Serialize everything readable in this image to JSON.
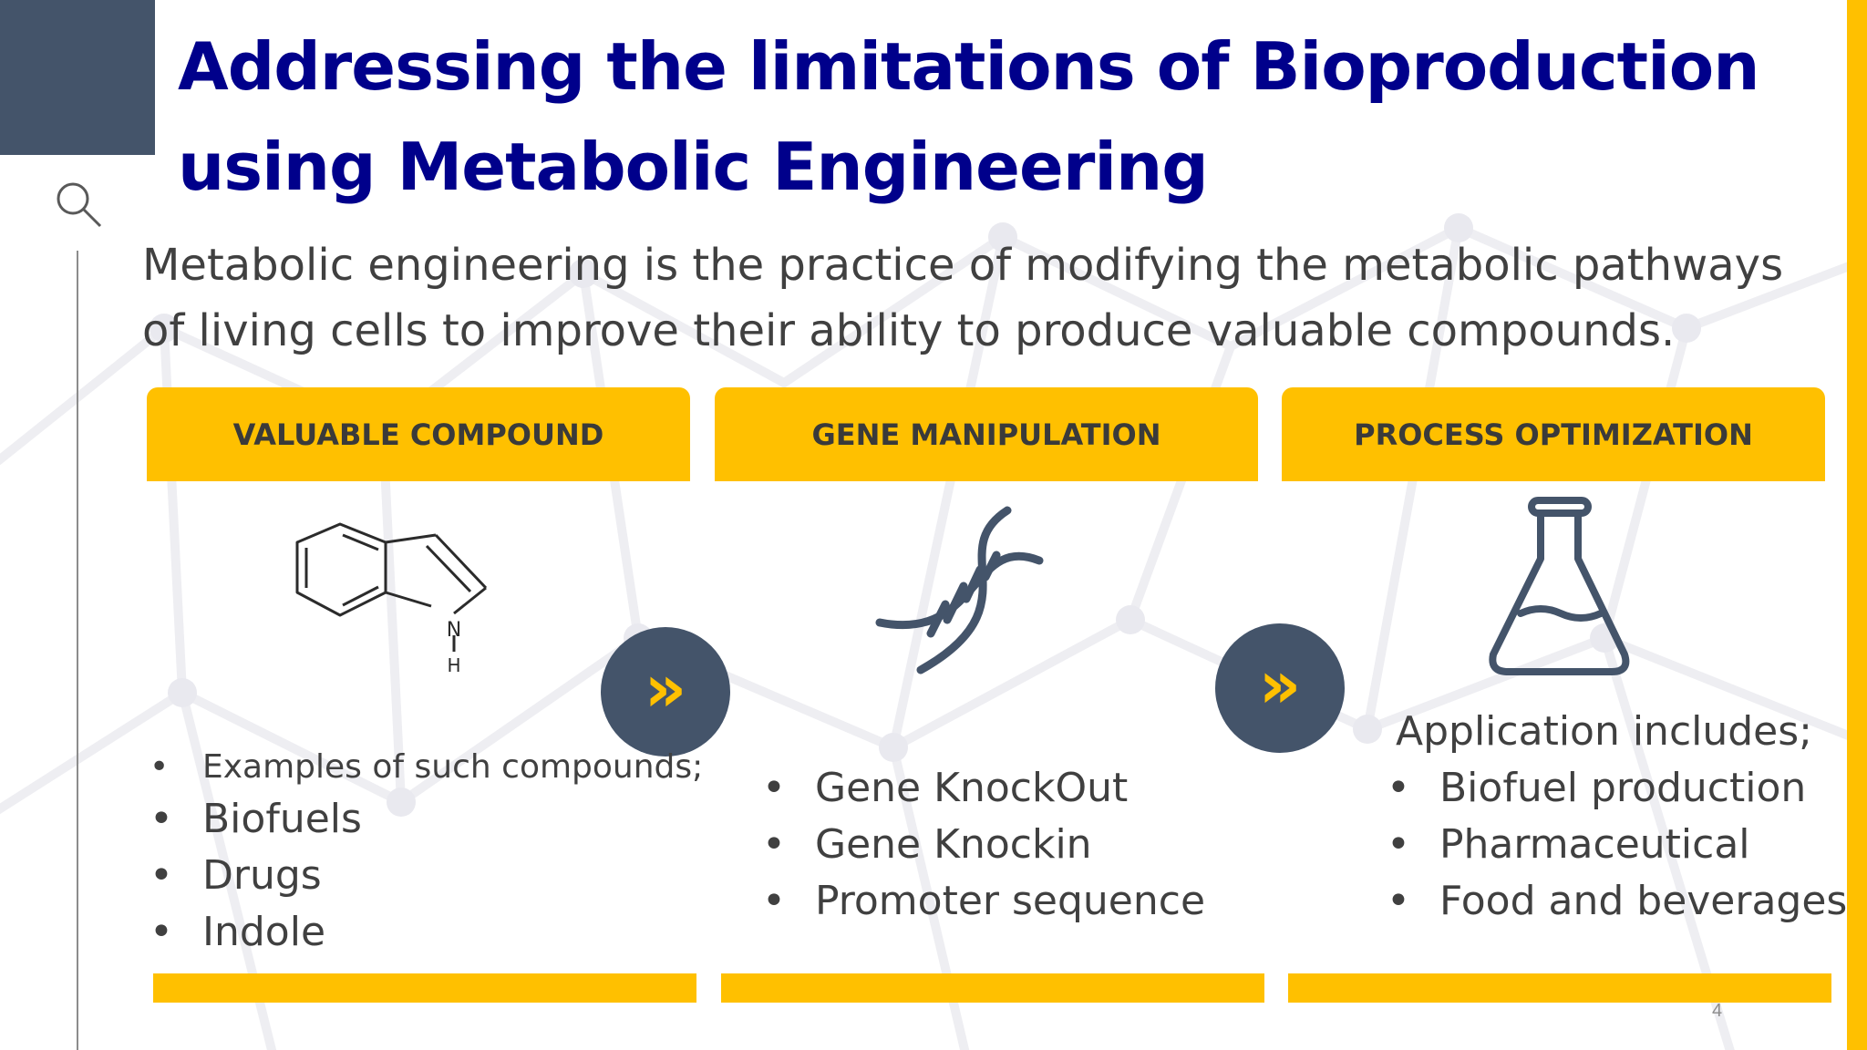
{
  "slide": {
    "title_line1": "Addressing the limitations of Bioproduction",
    "title_line2": "using Metabolic Engineering",
    "subtitle_line1": "Metabolic engineering is the practice of modifying the metabolic pathways",
    "subtitle_line2": "of living cells to improve their ability to produce valuable compounds.",
    "page_number": "4"
  },
  "columns": [
    {
      "header": "VALUABLE COMPOUND",
      "icon": "indole-structure-icon",
      "molecule_atom_n": "N",
      "molecule_atom_h": "H",
      "items": [
        "Examples of such compounds;",
        "Biofuels",
        "Drugs",
        "Indole"
      ]
    },
    {
      "header": "GENE MANIPULATION",
      "icon": "dna-helix-icon",
      "items": [
        "Gene KnockOut",
        "Gene Knockin",
        "Promoter sequence"
      ]
    },
    {
      "header": "PROCESS OPTIMIZATION",
      "icon": "flask-icon",
      "intro": "Application includes;",
      "items": [
        "Biofuel production",
        "Pharmaceutical",
        "Food and beverages"
      ]
    }
  ],
  "bullet_glyph": "•",
  "arrow_glyph": "»",
  "colors": {
    "accent_yellow": "#FFC000",
    "slate": "#44546A",
    "title_blue": "#00008B",
    "body_text": "#404040"
  }
}
